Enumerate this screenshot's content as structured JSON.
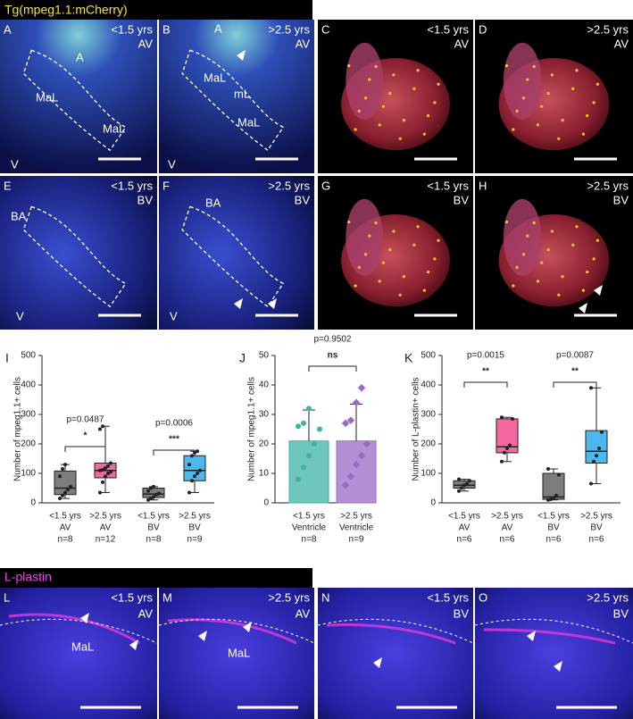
{
  "header": {
    "title": "Tg(mpeg1.1:mCherry)"
  },
  "panels": [
    {
      "letter": "A",
      "age": "<1.5 yrs",
      "valve": "AV",
      "labels": [
        "A",
        "MaL",
        "MaL",
        "V"
      ]
    },
    {
      "letter": "B",
      "age": ">2.5 yrs",
      "valve": "AV",
      "labels": [
        "A",
        "MaL",
        "mL",
        "MaL",
        "V"
      ]
    },
    {
      "letter": "C",
      "age": "<1.5 yrs",
      "valve": "AV",
      "labels": []
    },
    {
      "letter": "D",
      "age": ">2.5 yrs",
      "valve": "AV",
      "labels": []
    },
    {
      "letter": "E",
      "age": "<1.5 yrs",
      "valve": "BV",
      "labels": [
        "BA",
        "V"
      ]
    },
    {
      "letter": "F",
      "age": ">2.5 yrs",
      "valve": "BV",
      "labels": [
        "BA",
        "V"
      ]
    },
    {
      "letter": "G",
      "age": "<1.5 yrs",
      "valve": "BV",
      "labels": []
    },
    {
      "letter": "H",
      "age": ">2.5 yrs",
      "valve": "BV",
      "labels": []
    }
  ],
  "chart_data": [
    {
      "type": "box",
      "letter": "I",
      "ylabel": "Number of mpeg1.1+ cells",
      "ylim": [
        0,
        500
      ],
      "yticks": [
        0,
        100,
        200,
        300,
        400,
        500
      ],
      "groups": [
        {
          "label": [
            "<1.5 yrs",
            "AV",
            "n=8"
          ],
          "color": "#7d7d7d",
          "min": 15,
          "q1": 28,
          "median": 50,
          "q3": 108,
          "max": 130,
          "points": [
            15,
            25,
            35,
            45,
            55,
            90,
            115,
            130
          ]
        },
        {
          "label": [
            ">2.5 yrs",
            "AV",
            "n=12"
          ],
          "color": "#f2689f",
          "min": 35,
          "q1": 85,
          "median": 110,
          "q3": 135,
          "max": 260,
          "points": [
            35,
            70,
            90,
            100,
            105,
            110,
            112,
            118,
            125,
            135,
            250,
            260
          ]
        },
        {
          "label": [
            "<1.5 yrs",
            "BV",
            "n=8"
          ],
          "color": "#7d7d7d",
          "min": 10,
          "q1": 18,
          "median": 30,
          "q3": 50,
          "max": 55,
          "points": [
            10,
            15,
            20,
            28,
            32,
            40,
            50,
            55
          ]
        },
        {
          "label": [
            ">2.5 yrs",
            "BV",
            "n=9"
          ],
          "color": "#4db8ee",
          "min": 35,
          "q1": 75,
          "median": 110,
          "q3": 160,
          "max": 175,
          "points": [
            35,
            75,
            90,
            100,
            110,
            130,
            160,
            170,
            175
          ]
        }
      ],
      "annotations": [
        {
          "text": "p=0.0487",
          "mark": "*"
        },
        {
          "text": "p=0.0006",
          "mark": "***"
        }
      ]
    },
    {
      "type": "bar",
      "letter": "J",
      "ylabel": "Number of mpeg1.1+ cells",
      "ylim": [
        0,
        50
      ],
      "yticks": [
        0,
        10,
        20,
        30,
        40,
        50
      ],
      "groups": [
        {
          "label": [
            "<1.5 yrs",
            "Ventricle",
            "n=8"
          ],
          "color": "#3db3a6",
          "value": 21,
          "error": 10.5,
          "points": [
            8,
            12,
            16,
            20,
            25,
            26,
            27,
            32
          ]
        },
        {
          "label": [
            ">2.5 yrs",
            "Ventricle",
            "n=9"
          ],
          "color": "#9a6ac6",
          "value": 21,
          "error": 12.5,
          "points": [
            6,
            9,
            13,
            16,
            20,
            27,
            28,
            34,
            39
          ]
        }
      ],
      "annotations": [
        {
          "text": "p=0.9502",
          "mark": "ns"
        }
      ]
    },
    {
      "type": "box",
      "letter": "K",
      "ylabel": "Number of L-plastin+ cells",
      "ylim": [
        0,
        500
      ],
      "yticks": [
        0,
        100,
        200,
        300,
        400,
        500
      ],
      "groups": [
        {
          "label": [
            "<1.5 yrs",
            "AV",
            "n=6"
          ],
          "color": "#7d7d7d",
          "min": 40,
          "q1": 50,
          "median": 60,
          "q3": 75,
          "max": 80,
          "points": [
            40,
            50,
            60,
            65,
            75,
            80
          ]
        },
        {
          "label": [
            ">2.5 yrs",
            "AV",
            "n=6"
          ],
          "color": "#f2689f",
          "min": 140,
          "q1": 170,
          "median": 190,
          "q3": 285,
          "max": 290,
          "points": [
            140,
            170,
            185,
            195,
            285,
            290
          ]
        },
        {
          "label": [
            "<1.5 yrs",
            "BV",
            "n=6"
          ],
          "color": "#7d7d7d",
          "min": 10,
          "q1": 12,
          "median": 20,
          "q3": 100,
          "max": 115,
          "points": [
            10,
            12,
            15,
            25,
            95,
            115
          ]
        },
        {
          "label": [
            ">2.5 yrs",
            "BV",
            "n=6"
          ],
          "color": "#4db8ee",
          "min": 65,
          "q1": 135,
          "median": 175,
          "q3": 245,
          "max": 390,
          "points": [
            65,
            140,
            160,
            185,
            240,
            390
          ]
        }
      ],
      "annotations": [
        {
          "text": "p=0.0015",
          "mark": "**"
        },
        {
          "text": "p=0.0087",
          "mark": "**"
        }
      ]
    }
  ],
  "footer_header": {
    "title": "L-plastin"
  },
  "bottom_panels": [
    {
      "letter": "L",
      "age": "<1.5 yrs",
      "valve": "AV",
      "labels": [
        "MaL"
      ]
    },
    {
      "letter": "M",
      "age": ">2.5 yrs",
      "valve": "AV",
      "labels": [
        "MaL"
      ]
    },
    {
      "letter": "N",
      "age": "<1.5 yrs",
      "valve": "BV",
      "labels": []
    },
    {
      "letter": "O",
      "age": ">2.5 yrs",
      "valve": "BV",
      "labels": []
    }
  ]
}
